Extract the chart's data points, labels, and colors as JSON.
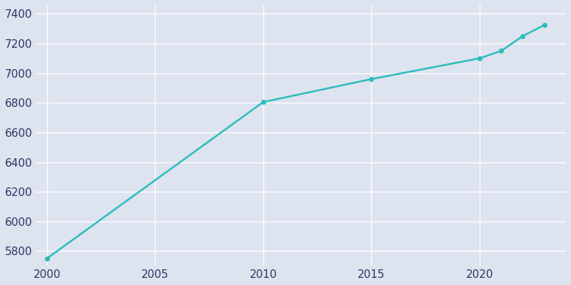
{
  "years": [
    2000,
    2010,
    2015,
    2020,
    2021,
    2022,
    2023
  ],
  "population": [
    5750,
    6805,
    6960,
    7100,
    7150,
    7250,
    7325
  ],
  "line_color": "#2bbcbc",
  "bg_color": "#dde3ef",
  "grid_color": "#ffffff",
  "tick_color": "#2d3561",
  "ylim": [
    5700,
    7460
  ],
  "xlim": [
    1999.5,
    2024
  ],
  "yticks": [
    5800,
    6000,
    6200,
    6400,
    6600,
    6800,
    7000,
    7200,
    7400
  ],
  "xticks": [
    2000,
    2005,
    2010,
    2015,
    2020
  ],
  "line_width": 1.8,
  "marker": "o",
  "marker_size": 4
}
